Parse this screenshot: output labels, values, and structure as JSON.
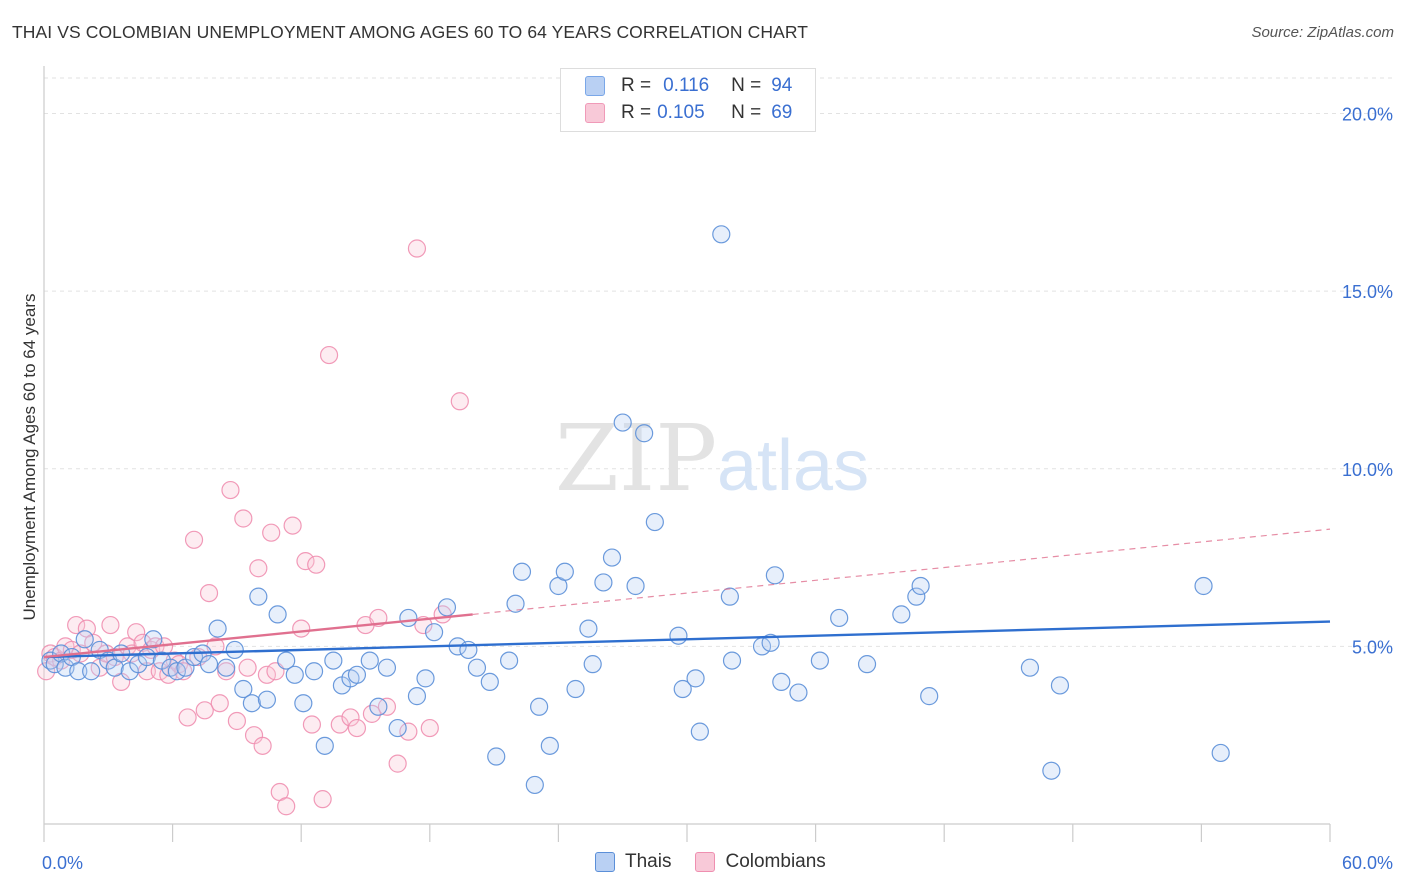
{
  "title": "THAI VS COLOMBIAN UNEMPLOYMENT AMONG AGES 60 TO 64 YEARS CORRELATION CHART",
  "source": "Source: ZipAtlas.com",
  "watermark": {
    "zip": "ZIP",
    "atlas": "atlas"
  },
  "legend_stats": [
    {
      "r_label": "R =",
      "r_value": "0.116",
      "n_label": "N =",
      "n_value": "94",
      "color": "#7aa7e8",
      "fill": "#b9d0f3"
    },
    {
      "r_label": "R =",
      "r_value": "0.105",
      "n_label": "N =",
      "n_value": "69",
      "color": "#f09ab8",
      "fill": "#f8c9d8"
    }
  ],
  "colors": {
    "thais": "#5b8fd8",
    "colombians": "#ef8fb0",
    "thais_line": "#2f6fcf",
    "colombians_line": "#e0708f",
    "tick_label": "#3a6fd1"
  },
  "chart_data": {
    "type": "scatter",
    "title": "THAI VS COLOMBIAN UNEMPLOYMENT AMONG AGES 60 TO 64 YEARS CORRELATION CHART",
    "xlabel": "",
    "ylabel": "Unemployment Among Ages 60 to 64 years",
    "xlim": [
      0,
      60
    ],
    "ylim": [
      0,
      21
    ],
    "x_tick_labels": [
      "0.0%",
      "60.0%"
    ],
    "y_ticks": [
      5,
      10,
      15,
      20
    ],
    "y_tick_labels": [
      "5.0%",
      "10.0%",
      "15.0%",
      "20.0%"
    ],
    "grid": true,
    "legend_position": "bottom",
    "series": [
      {
        "name": "Thais",
        "trend": {
          "x": [
            0,
            60
          ],
          "y": [
            4.7,
            5.7
          ]
        },
        "points": [
          [
            0.3,
            4.6
          ],
          [
            0.5,
            4.5
          ],
          [
            0.8,
            4.8
          ],
          [
            1.0,
            4.4
          ],
          [
            1.3,
            4.7
          ],
          [
            1.6,
            4.3
          ],
          [
            1.9,
            5.2
          ],
          [
            2.2,
            4.3
          ],
          [
            2.6,
            4.9
          ],
          [
            3.0,
            4.6
          ],
          [
            3.3,
            4.4
          ],
          [
            3.6,
            4.8
          ],
          [
            4.0,
            4.3
          ],
          [
            4.4,
            4.5
          ],
          [
            4.8,
            4.7
          ],
          [
            5.1,
            5.2
          ],
          [
            5.5,
            4.6
          ],
          [
            5.9,
            4.4
          ],
          [
            6.2,
            4.3
          ],
          [
            6.6,
            4.4
          ],
          [
            7.0,
            4.7
          ],
          [
            7.4,
            4.8
          ],
          [
            7.7,
            4.5
          ],
          [
            8.1,
            5.5
          ],
          [
            8.5,
            4.4
          ],
          [
            8.9,
            4.9
          ],
          [
            9.3,
            3.8
          ],
          [
            9.7,
            3.4
          ],
          [
            10.0,
            6.4
          ],
          [
            10.4,
            3.5
          ],
          [
            10.9,
            5.9
          ],
          [
            11.3,
            4.6
          ],
          [
            11.7,
            4.2
          ],
          [
            12.1,
            3.4
          ],
          [
            12.6,
            4.3
          ],
          [
            13.1,
            2.2
          ],
          [
            13.5,
            4.6
          ],
          [
            13.9,
            3.9
          ],
          [
            14.3,
            4.1
          ],
          [
            14.6,
            4.2
          ],
          [
            15.2,
            4.6
          ],
          [
            15.6,
            3.3
          ],
          [
            16.0,
            4.4
          ],
          [
            16.5,
            2.7
          ],
          [
            17.0,
            5.8
          ],
          [
            17.4,
            3.6
          ],
          [
            17.8,
            4.1
          ],
          [
            18.2,
            5.4
          ],
          [
            18.8,
            6.1
          ],
          [
            19.3,
            5.0
          ],
          [
            19.8,
            4.9
          ],
          [
            20.2,
            4.4
          ],
          [
            20.8,
            4.0
          ],
          [
            21.1,
            1.9
          ],
          [
            21.7,
            4.6
          ],
          [
            22.0,
            6.2
          ],
          [
            22.3,
            7.1
          ],
          [
            22.9,
            1.1
          ],
          [
            23.1,
            3.3
          ],
          [
            23.6,
            2.2
          ],
          [
            24.0,
            6.7
          ],
          [
            24.3,
            7.1
          ],
          [
            24.8,
            3.8
          ],
          [
            25.4,
            5.5
          ],
          [
            25.6,
            4.5
          ],
          [
            26.1,
            6.8
          ],
          [
            26.5,
            7.5
          ],
          [
            27.0,
            11.3
          ],
          [
            27.6,
            6.7
          ],
          [
            28.0,
            11.0
          ],
          [
            28.5,
            8.5
          ],
          [
            29.6,
            5.3
          ],
          [
            29.8,
            3.8
          ],
          [
            30.4,
            4.1
          ],
          [
            30.6,
            2.6
          ],
          [
            31.6,
            16.6
          ],
          [
            32.0,
            6.4
          ],
          [
            32.1,
            4.6
          ],
          [
            33.5,
            5.0
          ],
          [
            33.9,
            5.1
          ],
          [
            34.1,
            7.0
          ],
          [
            34.4,
            4.0
          ],
          [
            35.2,
            3.7
          ],
          [
            36.2,
            4.6
          ],
          [
            37.1,
            5.8
          ],
          [
            38.4,
            4.5
          ],
          [
            40.0,
            5.9
          ],
          [
            40.7,
            6.4
          ],
          [
            40.9,
            6.7
          ],
          [
            41.3,
            3.6
          ],
          [
            46.0,
            4.4
          ],
          [
            47.0,
            1.5
          ],
          [
            47.4,
            3.9
          ],
          [
            54.1,
            6.7
          ],
          [
            54.9,
            2.0
          ]
        ]
      },
      {
        "name": "Colombians",
        "trend": {
          "x": [
            0,
            20
          ],
          "y": [
            4.7,
            5.9
          ]
        },
        "trend_extension": {
          "x": [
            20,
            60
          ],
          "y": [
            5.9,
            8.3
          ]
        },
        "points": [
          [
            0.1,
            4.3
          ],
          [
            0.3,
            4.8
          ],
          [
            0.5,
            4.7
          ],
          [
            0.8,
            4.6
          ],
          [
            1.0,
            5.0
          ],
          [
            1.3,
            4.9
          ],
          [
            1.5,
            5.6
          ],
          [
            1.7,
            4.8
          ],
          [
            2.0,
            5.5
          ],
          [
            2.3,
            5.1
          ],
          [
            2.6,
            4.4
          ],
          [
            2.9,
            4.8
          ],
          [
            3.1,
            5.6
          ],
          [
            3.3,
            4.7
          ],
          [
            3.6,
            4.0
          ],
          [
            3.9,
            5.0
          ],
          [
            4.1,
            4.8
          ],
          [
            4.3,
            5.4
          ],
          [
            4.6,
            5.1
          ],
          [
            4.8,
            4.3
          ],
          [
            5.0,
            4.9
          ],
          [
            5.2,
            5.0
          ],
          [
            5.4,
            4.3
          ],
          [
            5.6,
            5.0
          ],
          [
            5.8,
            4.2
          ],
          [
            6.1,
            4.6
          ],
          [
            6.3,
            4.5
          ],
          [
            6.5,
            4.3
          ],
          [
            6.7,
            3.0
          ],
          [
            7.0,
            8.0
          ],
          [
            7.2,
            4.7
          ],
          [
            7.5,
            3.2
          ],
          [
            7.7,
            6.5
          ],
          [
            8.0,
            5.0
          ],
          [
            8.2,
            3.4
          ],
          [
            8.5,
            4.3
          ],
          [
            8.7,
            9.4
          ],
          [
            9.0,
            2.9
          ],
          [
            9.3,
            8.6
          ],
          [
            9.5,
            4.4
          ],
          [
            9.8,
            2.5
          ],
          [
            10.0,
            7.2
          ],
          [
            10.2,
            2.2
          ],
          [
            10.4,
            4.2
          ],
          [
            10.6,
            8.2
          ],
          [
            10.8,
            4.3
          ],
          [
            11.0,
            0.9
          ],
          [
            11.3,
            0.5
          ],
          [
            11.6,
            8.4
          ],
          [
            12.0,
            5.5
          ],
          [
            12.2,
            7.4
          ],
          [
            12.5,
            2.8
          ],
          [
            12.7,
            7.3
          ],
          [
            13.0,
            0.7
          ],
          [
            13.3,
            13.2
          ],
          [
            13.8,
            2.8
          ],
          [
            14.3,
            3.0
          ],
          [
            14.6,
            2.7
          ],
          [
            15.0,
            5.6
          ],
          [
            15.3,
            3.1
          ],
          [
            15.6,
            5.8
          ],
          [
            16.0,
            3.3
          ],
          [
            16.5,
            1.7
          ],
          [
            17.0,
            2.6
          ],
          [
            17.4,
            16.2
          ],
          [
            17.7,
            5.6
          ],
          [
            18.0,
            2.7
          ],
          [
            18.6,
            5.9
          ],
          [
            19.4,
            11.9
          ]
        ]
      }
    ]
  },
  "bottom_legend": [
    {
      "label": "Thais",
      "color": "#5b8fd8",
      "fill": "#b9d0f3"
    },
    {
      "label": "Colombians",
      "color": "#ef8fb0",
      "fill": "#f8c9d8"
    }
  ]
}
